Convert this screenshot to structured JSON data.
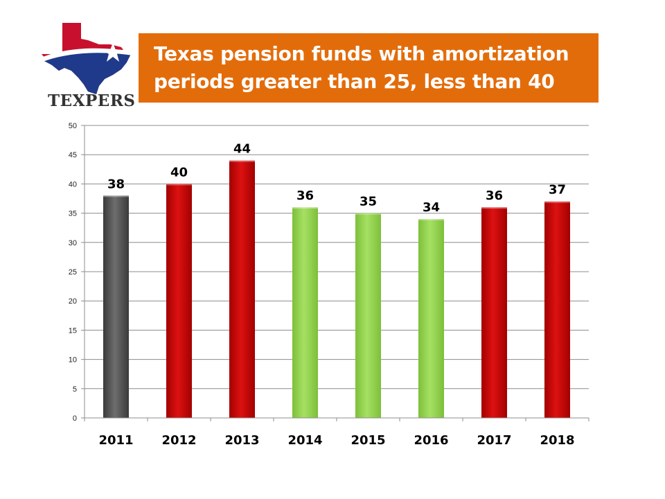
{
  "logo": {
    "name": "TEXPERS",
    "colors": {
      "red": "#c8102e",
      "blue": "#1f3a8a"
    }
  },
  "title": {
    "line1": "Texas pension funds with amortization",
    "line2": "periods greater than 25, less than 40"
  },
  "chart_data": {
    "type": "bar",
    "title": "Texas pension funds with amortization periods greater than 25, less than 40",
    "xlabel": "",
    "ylabel": "",
    "categories": [
      "2011",
      "2012",
      "2013",
      "2014",
      "2015",
      "2016",
      "2017",
      "2018"
    ],
    "values": [
      38,
      40,
      44,
      36,
      35,
      34,
      36,
      37
    ],
    "bar_colors": [
      "gray",
      "red",
      "red",
      "green",
      "green",
      "green",
      "red",
      "red"
    ],
    "palette": {
      "gray": "#555555",
      "red": "#cc0000",
      "green": "#92d050"
    },
    "ylim": [
      0,
      50
    ],
    "yticks": [
      0,
      5,
      10,
      15,
      20,
      25,
      30,
      35,
      40,
      45,
      50
    ],
    "grid": true,
    "legend": "none"
  }
}
